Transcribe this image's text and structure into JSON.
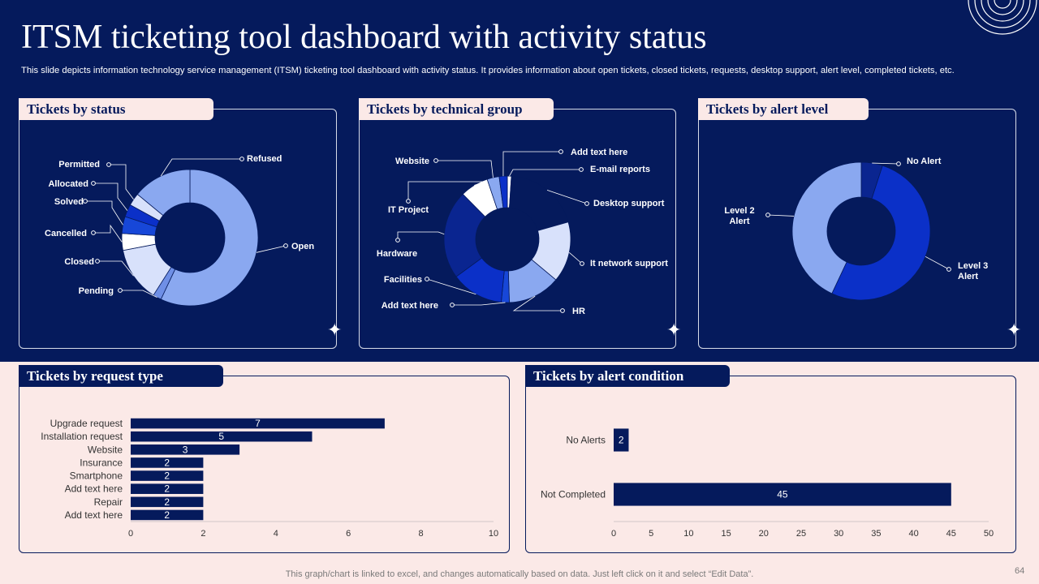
{
  "header": {
    "title": "ITSM ticketing tool dashboard with activity status",
    "subtitle": "This slide depicts information technology service management (ITSM) ticketing tool dashboard with activity status. It provides information about open tickets, closed tickets, requests, desktop support, alert level, completed tickets, etc."
  },
  "footer": {
    "note": "This graph/chart is linked to excel,  and changes automatically based on data. Just left click on it and select “Edit Data”.",
    "page_number": "64"
  },
  "panels": {
    "status": "Tickets by status",
    "technical": "Tickets by technical group",
    "alert_level": "Tickets by alert level",
    "request_type": "Tickets by request type",
    "alert_condition": "Tickets by alert condition"
  },
  "colors": {
    "navy": "#051a5c",
    "pink": "#fbe9e7",
    "light_blue": "#8aa8f0",
    "pale_blue": "#d8e1fb",
    "royal": "#0b30c8",
    "mid_blue": "#1747d8",
    "deep": "#0a2590",
    "bar": "#051a5c"
  },
  "chart_data": [
    {
      "id": "status",
      "type": "pie",
      "title": "Tickets by status",
      "categories": [
        "Open",
        "Pending",
        "Closed",
        "Cancelled",
        "Solved",
        "Allocated",
        "Permitted",
        "Refused"
      ],
      "values": [
        57,
        2,
        13,
        4,
        4,
        3,
        3,
        14
      ],
      "colors": [
        "#8aa8f0",
        "#6f8fe6",
        "#d8e1fb",
        "#ffffff",
        "#1747d8",
        "#0b30c8",
        "#d8e1fb",
        "#8aa8f0"
      ]
    },
    {
      "id": "technical",
      "type": "pie",
      "title": "Tickets by technical group",
      "categories": [
        "E-mail reports",
        "Desktop support",
        "It network support",
        "HR",
        "Add text here",
        "Facilities",
        "Hardware",
        "IT Project",
        "Website",
        "Add text here"
      ],
      "values": [
        1,
        19,
        15,
        13,
        2,
        13,
        22,
        7,
        3,
        2
      ],
      "colors": [
        "#ffffff",
        "#051a5c",
        "#d8e1fb",
        "#8aa8f0",
        "#1747d8",
        "#0b30c8",
        "#0a2590",
        "#ffffff",
        "#8aa8f0",
        "#0b30c8"
      ]
    },
    {
      "id": "alert_level",
      "type": "pie",
      "title": "Tickets by alert level",
      "categories": [
        "No Alert",
        "Level 3 Alert",
        "Level 2 Alert"
      ],
      "values": [
        5,
        52,
        43
      ],
      "colors": [
        "#0a2590",
        "#0b30c8",
        "#8aa8f0"
      ]
    },
    {
      "id": "request_type",
      "type": "bar",
      "orientation": "horizontal",
      "title": "Tickets by request type",
      "categories": [
        "Upgrade request",
        "Installation request",
        "Website",
        "Insurance",
        "Smartphone",
        "Add text here",
        "Repair",
        "Add text here"
      ],
      "values": [
        7,
        5,
        3,
        2,
        2,
        2,
        2,
        2
      ],
      "xlim": [
        0,
        10
      ],
      "xticks": [
        0,
        2,
        4,
        6,
        8,
        10
      ]
    },
    {
      "id": "alert_condition",
      "type": "bar",
      "orientation": "horizontal",
      "title": "Tickets by alert condition",
      "categories": [
        "No Alerts",
        "Not Completed"
      ],
      "values": [
        2,
        45
      ],
      "xlim": [
        0,
        50
      ],
      "xticks": [
        0,
        5,
        10,
        15,
        20,
        25,
        30,
        35,
        40,
        45,
        50
      ]
    }
  ]
}
